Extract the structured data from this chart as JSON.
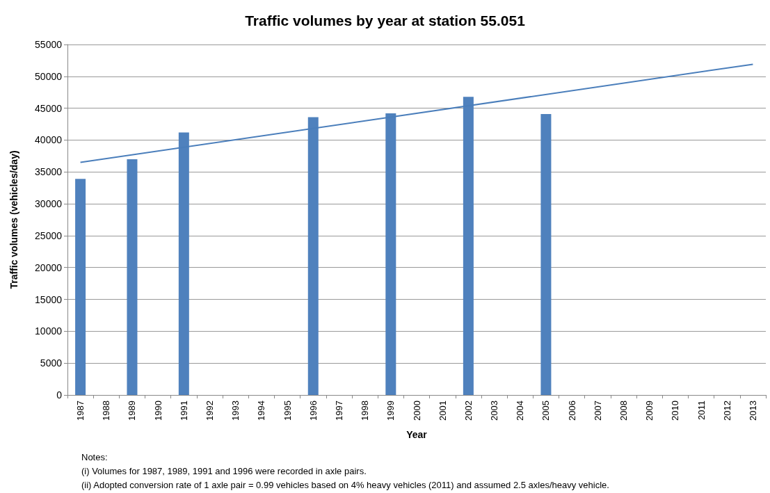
{
  "chart_data": {
    "type": "bar",
    "title": "Traffic volumes by year at station 55.051",
    "xlabel": "Year",
    "ylabel": "Traffic volumes (vehicles/day)",
    "categories": [
      "1987",
      "1988",
      "1989",
      "1990",
      "1991",
      "1992",
      "1993",
      "1994",
      "1995",
      "1996",
      "1997",
      "1998",
      "1999",
      "2000",
      "2001",
      "2002",
      "2003",
      "2004",
      "2005",
      "2006",
      "2007",
      "2008",
      "2009",
      "2010",
      "2011",
      "2012",
      "2013"
    ],
    "series": [
      {
        "color": "#4f81bd",
        "values": [
          33900,
          null,
          37000,
          null,
          41200,
          null,
          null,
          null,
          null,
          43600,
          null,
          null,
          44200,
          null,
          null,
          46800,
          null,
          null,
          44100,
          null,
          null,
          null,
          null,
          null,
          null,
          null,
          null
        ]
      },
      {
        "type": "line",
        "color": "#4a7ebb",
        "values": [
          36500,
          null,
          null,
          null,
          null,
          null,
          null,
          null,
          null,
          null,
          null,
          null,
          null,
          null,
          null,
          null,
          null,
          null,
          null,
          null,
          null,
          null,
          null,
          null,
          null,
          null,
          51900
        ]
      }
    ],
    "ylim": [
      0,
      55000
    ],
    "yticks": [
      0,
      5000,
      10000,
      15000,
      20000,
      25000,
      30000,
      35000,
      40000,
      45000,
      50000,
      55000
    ],
    "grid": "y",
    "marker": "none",
    "annotations": [
      "Notes:",
      "(i) Volumes for 1987, 1989, 1991 and 1996 were recorded in axle pairs.",
      "(ii) Adopted conversion rate of 1 axle pair = 0.99 vehicles based on 4% heavy vehicles (2011) and assumed 2.5 axles/heavy vehicle."
    ]
  }
}
